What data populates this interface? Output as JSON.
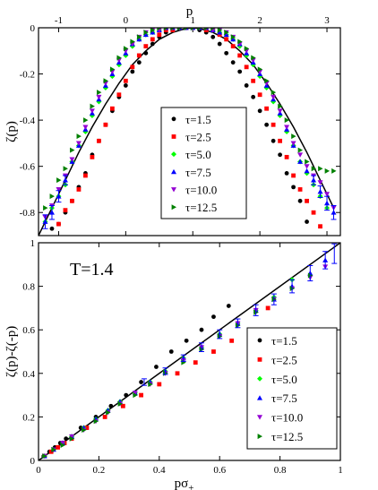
{
  "chart_data": [
    {
      "type": "scatter",
      "title": "",
      "xlabel": "p",
      "ylabel": "ζ(p)",
      "xlim": [
        -1.3,
        3.2
      ],
      "ylim": [
        -0.9,
        0.0
      ],
      "x_ticks": [
        -1,
        0,
        1,
        2,
        3
      ],
      "x_tick_labels": [
        "-1",
        "0",
        "1",
        "2",
        "3"
      ],
      "y_ticks": [
        0,
        -0.2,
        -0.4,
        -0.6,
        -0.8
      ],
      "y_tick_labels": [
        "0",
        "-0.2",
        "-0.4",
        "-0.6",
        "-0.8"
      ],
      "x_axis_position": "top",
      "grid": false,
      "legend_position": "center",
      "series": [
        {
          "name": "τ=1.5",
          "color": "#000000",
          "marker": "circle",
          "x": [
            -1.1,
            -1.0,
            -0.9,
            -0.8,
            -0.7,
            -0.6,
            -0.5,
            -0.4,
            -0.3,
            -0.2,
            -0.1,
            0.0,
            0.1,
            0.2,
            0.3,
            0.4,
            0.5,
            0.6,
            0.7,
            0.8,
            0.9,
            1.0,
            1.1,
            1.2,
            1.3,
            1.4,
            1.5,
            1.6,
            1.7,
            1.8,
            1.9,
            2.0,
            2.1,
            2.2,
            2.3,
            2.4,
            2.5,
            2.6,
            2.7
          ],
          "y": [
            -0.87,
            -0.85,
            -0.8,
            -0.75,
            -0.69,
            -0.63,
            -0.55,
            -0.49,
            -0.42,
            -0.36,
            -0.3,
            -0.25,
            -0.19,
            -0.15,
            -0.11,
            -0.07,
            -0.04,
            -0.02,
            -0.01,
            0.0,
            0.0,
            0.0,
            -0.01,
            -0.02,
            -0.04,
            -0.07,
            -0.11,
            -0.15,
            -0.19,
            -0.25,
            -0.3,
            -0.36,
            -0.42,
            -0.49,
            -0.55,
            -0.63,
            -0.69,
            -0.75,
            -0.84
          ]
        },
        {
          "name": "τ=2.5",
          "color": "#ff0000",
          "marker": "square",
          "x": [
            -1.0,
            -0.9,
            -0.8,
            -0.7,
            -0.6,
            -0.5,
            -0.4,
            -0.3,
            -0.2,
            -0.1,
            0.0,
            0.1,
            0.2,
            0.3,
            0.4,
            0.5,
            0.6,
            0.7,
            0.8,
            0.9,
            1.0,
            1.1,
            1.2,
            1.3,
            1.4,
            1.5,
            1.6,
            1.7,
            1.8,
            1.9,
            2.0,
            2.1,
            2.2,
            2.3,
            2.4,
            2.5,
            2.6,
            2.7,
            2.8,
            2.9
          ],
          "y": [
            -0.85,
            -0.79,
            -0.75,
            -0.7,
            -0.64,
            -0.56,
            -0.49,
            -0.42,
            -0.35,
            -0.29,
            -0.23,
            -0.17,
            -0.12,
            -0.08,
            -0.05,
            -0.03,
            -0.01,
            -0.01,
            0.0,
            0.0,
            0.0,
            0.0,
            -0.01,
            -0.01,
            -0.03,
            -0.05,
            -0.08,
            -0.12,
            -0.17,
            -0.23,
            -0.29,
            -0.35,
            -0.42,
            -0.49,
            -0.56,
            -0.64,
            -0.7,
            -0.75,
            -0.8,
            -0.86
          ]
        },
        {
          "name": "τ=5.0",
          "color": "#00ff00",
          "marker": "diamond",
          "x": [
            -1.2,
            -1.1,
            -1.0,
            -0.9,
            -0.8,
            -0.7,
            -0.6,
            -0.5,
            -0.4,
            -0.3,
            -0.2,
            -0.1,
            0.0,
            0.1,
            0.2,
            0.3,
            0.4,
            0.5,
            0.6,
            0.7,
            0.8,
            0.9,
            1.0,
            1.1,
            1.2,
            1.3,
            1.4,
            1.5,
            1.6,
            1.7,
            1.8,
            1.9,
            2.0,
            2.1,
            2.2,
            2.3,
            2.4,
            2.5,
            2.6,
            2.7,
            2.8,
            2.9,
            3.0
          ],
          "y": [
            -0.84,
            -0.78,
            -0.73,
            -0.68,
            -0.58,
            -0.51,
            -0.45,
            -0.38,
            -0.32,
            -0.26,
            -0.21,
            -0.16,
            -0.12,
            -0.08,
            -0.05,
            -0.03,
            -0.02,
            -0.01,
            0.0,
            0.0,
            0.0,
            0.0,
            0.0,
            0.0,
            0.0,
            -0.01,
            -0.02,
            -0.03,
            -0.05,
            -0.08,
            -0.12,
            -0.16,
            -0.21,
            -0.26,
            -0.32,
            -0.38,
            -0.45,
            -0.51,
            -0.58,
            -0.63,
            -0.68,
            -0.73,
            -0.78
          ]
        },
        {
          "name": "τ=7.5",
          "color": "#0000ff",
          "marker": "triangle-up",
          "x": [
            -1.2,
            -1.1,
            -1.0,
            -0.9,
            -0.8,
            -0.7,
            -0.6,
            -0.5,
            -0.4,
            -0.3,
            -0.2,
            -0.1,
            0.0,
            0.1,
            0.2,
            0.3,
            0.4,
            0.5,
            0.6,
            0.7,
            0.8,
            0.9,
            1.0,
            1.1,
            1.2,
            1.3,
            1.4,
            1.5,
            1.6,
            1.7,
            1.8,
            1.9,
            2.0,
            2.1,
            2.2,
            2.3,
            2.4,
            2.5,
            2.6,
            2.7,
            2.8,
            2.9,
            3.0,
            3.1
          ],
          "y": [
            -0.84,
            -0.8,
            -0.73,
            -0.66,
            -0.58,
            -0.51,
            -0.44,
            -0.37,
            -0.31,
            -0.25,
            -0.2,
            -0.15,
            -0.11,
            -0.07,
            -0.05,
            -0.03,
            -0.02,
            -0.01,
            0.0,
            0.0,
            0.0,
            0.0,
            0.0,
            0.0,
            0.0,
            -0.01,
            -0.02,
            -0.03,
            -0.05,
            -0.07,
            -0.11,
            -0.15,
            -0.2,
            -0.25,
            -0.31,
            -0.37,
            -0.44,
            -0.51,
            -0.58,
            -0.62,
            -0.66,
            -0.71,
            -0.76,
            -0.8
          ]
        },
        {
          "name": "τ=10.0",
          "color": "#9400d3",
          "marker": "triangle-down",
          "x": [
            -1.2,
            -1.1,
            -1.0,
            -0.9,
            -0.8,
            -0.7,
            -0.6,
            -0.5,
            -0.4,
            -0.3,
            -0.2,
            -0.1,
            0.0,
            0.1,
            0.2,
            0.3,
            0.4,
            0.5,
            0.6,
            0.7,
            0.8,
            0.9,
            1.0,
            1.1,
            1.2,
            1.3,
            1.4,
            1.5,
            1.6,
            1.7,
            1.8,
            1.9,
            2.0,
            2.1,
            2.2,
            2.3,
            2.4,
            2.5,
            2.6,
            2.7,
            2.8,
            2.9,
            3.0,
            3.1
          ],
          "y": [
            -0.82,
            -0.77,
            -0.7,
            -0.64,
            -0.57,
            -0.5,
            -0.43,
            -0.36,
            -0.3,
            -0.24,
            -0.19,
            -0.14,
            -0.1,
            -0.07,
            -0.04,
            -0.02,
            -0.01,
            -0.01,
            0.0,
            0.0,
            0.0,
            0.0,
            0.0,
            0.0,
            0.0,
            -0.01,
            -0.01,
            -0.02,
            -0.04,
            -0.07,
            -0.1,
            -0.14,
            -0.19,
            -0.24,
            -0.3,
            -0.36,
            -0.43,
            -0.5,
            -0.55,
            -0.6,
            -0.64,
            -0.67,
            -0.72,
            -0.78
          ]
        },
        {
          "name": "τ=12.5",
          "color": "#008000",
          "marker": "triangle-right",
          "x": [
            -1.2,
            -1.1,
            -1.0,
            -0.9,
            -0.8,
            -0.7,
            -0.6,
            -0.5,
            -0.4,
            -0.3,
            -0.2,
            -0.1,
            0.0,
            0.1,
            0.2,
            0.3,
            0.4,
            0.5,
            0.6,
            0.7,
            0.8,
            0.9,
            1.0,
            1.1,
            1.2,
            1.3,
            1.4,
            1.5,
            1.6,
            1.7,
            1.8,
            1.9,
            2.0,
            2.1,
            2.2,
            2.3,
            2.4,
            2.5,
            2.6,
            2.7,
            2.8,
            2.9,
            3.0,
            3.1
          ],
          "y": [
            -0.78,
            -0.73,
            -0.66,
            -0.61,
            -0.53,
            -0.47,
            -0.4,
            -0.34,
            -0.28,
            -0.23,
            -0.18,
            -0.13,
            -0.09,
            -0.06,
            -0.04,
            -0.02,
            -0.01,
            0.0,
            0.0,
            0.0,
            0.0,
            0.0,
            0.0,
            0.0,
            0.0,
            0.0,
            -0.01,
            -0.02,
            -0.04,
            -0.06,
            -0.09,
            -0.13,
            -0.18,
            -0.23,
            -0.28,
            -0.34,
            -0.4,
            -0.47,
            -0.53,
            -0.58,
            -0.61,
            -0.61,
            -0.62,
            -0.62
          ]
        }
      ],
      "fit_curve": {
        "color": "#000000",
        "type": "line",
        "x": [
          -1.3,
          -1.1,
          -0.9,
          -0.7,
          -0.5,
          -0.3,
          -0.1,
          0.1,
          0.3,
          0.5,
          0.7,
          0.9,
          1.0,
          1.1,
          1.3,
          1.5,
          1.7,
          1.9,
          2.1,
          2.3,
          2.5,
          2.7,
          2.9,
          3.1
        ],
        "y": [
          -0.9,
          -0.78,
          -0.66,
          -0.54,
          -0.43,
          -0.33,
          -0.24,
          -0.16,
          -0.1,
          -0.05,
          -0.02,
          -0.003,
          0.0,
          -0.003,
          -0.02,
          -0.05,
          -0.1,
          -0.16,
          -0.24,
          -0.33,
          -0.43,
          -0.54,
          -0.66,
          -0.78
        ]
      },
      "error_bars": [
        {
          "x": -1.2,
          "y": -0.84,
          "err": 0.03
        },
        {
          "x": -1.1,
          "y": -0.8,
          "err": 0.03
        },
        {
          "x": -1.0,
          "y": -0.73,
          "err": 0.025
        },
        {
          "x": -0.9,
          "y": -0.66,
          "err": 0.02
        },
        {
          "x": 2.8,
          "y": -0.66,
          "err": 0.02
        },
        {
          "x": 2.9,
          "y": -0.71,
          "err": 0.025
        },
        {
          "x": 3.0,
          "y": -0.76,
          "err": 0.03
        },
        {
          "x": 3.1,
          "y": -0.8,
          "err": 0.03
        }
      ]
    },
    {
      "type": "scatter",
      "title": "",
      "xlabel": "pσ",
      "xlabel_subscript": "+",
      "ylabel": "ζ(p)-ζ(-p)",
      "xlim": [
        0,
        1
      ],
      "ylim": [
        0,
        1
      ],
      "x_ticks": [
        0,
        0.2,
        0.4,
        0.6,
        0.8,
        1
      ],
      "x_tick_labels": [
        "0",
        "0.2",
        "0.4",
        "0.6",
        "0.8",
        "1"
      ],
      "y_ticks": [
        0,
        0.2,
        0.4,
        0.6,
        0.8,
        1
      ],
      "y_tick_labels": [
        "0",
        "0.2",
        "0.4",
        "0.6",
        "0.8",
        "1"
      ],
      "grid": false,
      "legend_position": "bottom-right",
      "annotation": "T=1.4",
      "series": [
        {
          "name": "τ=1.5",
          "color": "#000000",
          "marker": "circle",
          "x": [
            0.017,
            0.036,
            0.054,
            0.072,
            0.091,
            0.14,
            0.19,
            0.24,
            0.29,
            0.34,
            0.39,
            0.44,
            0.49,
            0.54,
            0.58,
            0.63
          ],
          "y": [
            0.02,
            0.04,
            0.06,
            0.08,
            0.1,
            0.15,
            0.2,
            0.25,
            0.3,
            0.36,
            0.43,
            0.5,
            0.55,
            0.6,
            0.66,
            0.71
          ]
        },
        {
          "name": "τ=2.5",
          "color": "#ff0000",
          "marker": "square",
          "x": [
            0.02,
            0.042,
            0.064,
            0.086,
            0.11,
            0.16,
            0.22,
            0.28,
            0.34,
            0.4,
            0.46,
            0.52,
            0.58,
            0.64,
            0.7,
            0.76
          ],
          "y": [
            0.02,
            0.04,
            0.06,
            0.08,
            0.1,
            0.15,
            0.2,
            0.25,
            0.3,
            0.35,
            0.4,
            0.45,
            0.5,
            0.55,
            0.6,
            0.7
          ]
        },
        {
          "name": "τ=5.0",
          "color": "#00ff00",
          "marker": "diamond",
          "x": [
            0.02,
            0.05,
            0.08,
            0.11,
            0.15,
            0.19,
            0.23,
            0.27,
            0.32,
            0.37,
            0.42,
            0.48,
            0.54,
            0.6,
            0.66,
            0.72,
            0.78,
            0.84
          ],
          "y": [
            0.02,
            0.05,
            0.08,
            0.11,
            0.15,
            0.19,
            0.23,
            0.27,
            0.31,
            0.36,
            0.41,
            0.47,
            0.52,
            0.58,
            0.63,
            0.69,
            0.75,
            0.83
          ]
        },
        {
          "name": "τ=7.5",
          "color": "#0000ff",
          "marker": "triangle-up",
          "x": [
            0.02,
            0.05,
            0.08,
            0.11,
            0.15,
            0.19,
            0.23,
            0.27,
            0.32,
            0.37,
            0.42,
            0.48,
            0.54,
            0.6,
            0.66,
            0.72,
            0.78,
            0.84,
            0.9,
            0.95
          ],
          "y": [
            0.02,
            0.05,
            0.08,
            0.11,
            0.15,
            0.19,
            0.23,
            0.27,
            0.31,
            0.36,
            0.41,
            0.47,
            0.52,
            0.58,
            0.63,
            0.69,
            0.74,
            0.8,
            0.86,
            0.92
          ]
        },
        {
          "name": "τ=10.0",
          "color": "#9400d3",
          "marker": "triangle-down",
          "x": [
            0.02,
            0.05,
            0.08,
            0.11,
            0.15,
            0.19,
            0.23,
            0.27,
            0.32,
            0.37,
            0.42,
            0.48,
            0.54,
            0.6,
            0.66,
            0.72,
            0.78,
            0.84,
            0.9,
            0.95
          ],
          "y": [
            0.02,
            0.05,
            0.08,
            0.11,
            0.14,
            0.18,
            0.22,
            0.26,
            0.31,
            0.35,
            0.4,
            0.46,
            0.52,
            0.57,
            0.63,
            0.69,
            0.74,
            0.79,
            0.84,
            0.89
          ]
        },
        {
          "name": "τ=12.5",
          "color": "#008000",
          "marker": "triangle-right",
          "x": [
            0.02,
            0.05,
            0.08,
            0.11,
            0.15,
            0.19,
            0.23,
            0.27,
            0.32,
            0.37,
            0.42,
            0.48,
            0.54,
            0.6,
            0.66,
            0.72,
            0.78,
            0.84,
            0.9
          ],
          "y": [
            0.02,
            0.05,
            0.07,
            0.1,
            0.14,
            0.18,
            0.22,
            0.26,
            0.3,
            0.35,
            0.4,
            0.45,
            0.51,
            0.57,
            0.62,
            0.68,
            0.74,
            0.79,
            0.85
          ]
        }
      ],
      "fit_curve": {
        "color": "#000000",
        "type": "line",
        "x": [
          0,
          1
        ],
        "y": [
          0,
          1
        ]
      },
      "error_bars": [
        {
          "x": 0.35,
          "y": 0.36,
          "err": 0.015
        },
        {
          "x": 0.42,
          "y": 0.41,
          "err": 0.015
        },
        {
          "x": 0.48,
          "y": 0.47,
          "err": 0.015
        },
        {
          "x": 0.54,
          "y": 0.52,
          "err": 0.02
        },
        {
          "x": 0.6,
          "y": 0.58,
          "err": 0.02
        },
        {
          "x": 0.66,
          "y": 0.63,
          "err": 0.02
        },
        {
          "x": 0.72,
          "y": 0.69,
          "err": 0.025
        },
        {
          "x": 0.78,
          "y": 0.74,
          "err": 0.025
        },
        {
          "x": 0.84,
          "y": 0.8,
          "err": 0.03
        },
        {
          "x": 0.9,
          "y": 0.86,
          "err": 0.035
        },
        {
          "x": 0.95,
          "y": 0.92,
          "err": 0.04
        },
        {
          "x": 0.98,
          "y": 0.95,
          "err": 0.045
        }
      ]
    }
  ]
}
